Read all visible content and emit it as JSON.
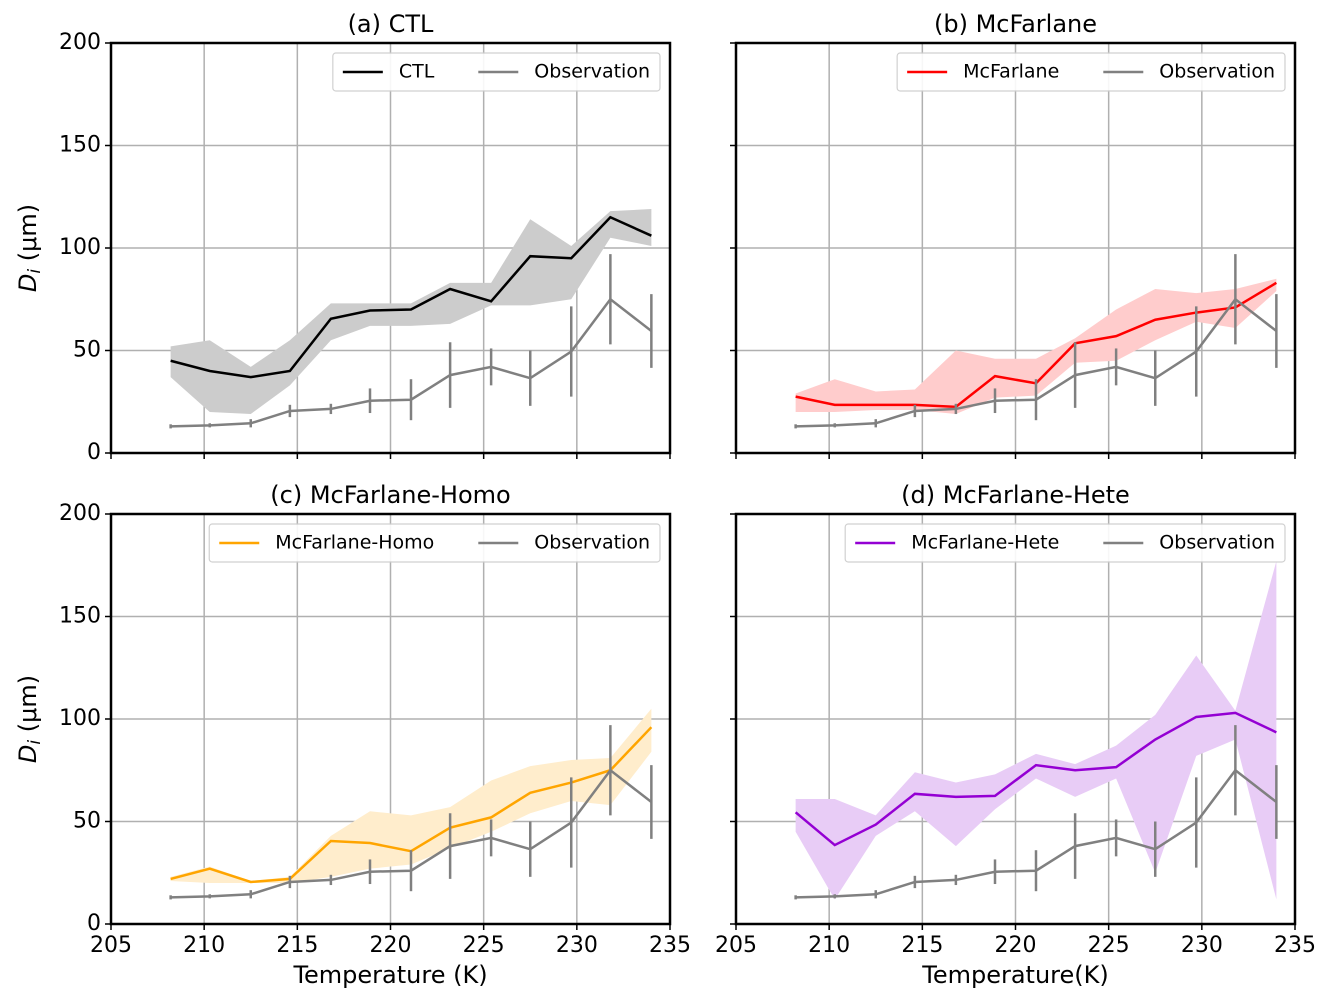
{
  "chart_data": [
    {
      "type": "line",
      "title": "(a) CTL",
      "x": [
        208.2,
        210.3,
        212.5,
        214.6,
        216.8,
        218.9,
        221.1,
        223.2,
        225.4,
        227.5,
        229.7,
        231.8,
        234.0
      ],
      "xlim": [
        205,
        235
      ],
      "xticks": [
        205,
        210,
        215,
        220,
        225,
        230,
        235
      ],
      "show_xticklabels": false,
      "ylim": [
        0,
        200
      ],
      "yticks": [
        0,
        50,
        100,
        150,
        200
      ],
      "show_yticklabels": true,
      "ylabel": {
        "symbol": "D",
        "subscript": "i",
        "unit": " (μm)"
      },
      "grid": true,
      "legend": "upper right",
      "series": [
        {
          "name": "CTL",
          "color": "#000000",
          "band_color": "#cccccc",
          "values": [
            45,
            40,
            37,
            40,
            65.5,
            69.5,
            70,
            80,
            74,
            96,
            95,
            115,
            106
          ],
          "band_lower": [
            37,
            20,
            19,
            33,
            55,
            62,
            62,
            63,
            72,
            72,
            75,
            105,
            101
          ],
          "band_upper": [
            52,
            55,
            42,
            55,
            73,
            73,
            73,
            83,
            83,
            114,
            101,
            118,
            119
          ]
        },
        {
          "name": "Observation",
          "color": "#808080",
          "values": [
            13,
            13.5,
            14.5,
            20.5,
            21.5,
            25.5,
            26,
            38,
            42,
            36.5,
            49.5,
            75,
            59.5
          ],
          "errors": [
            1,
            1,
            2,
            3,
            2.5,
            6,
            10,
            16,
            9,
            13.5,
            22,
            22,
            18
          ]
        }
      ]
    },
    {
      "type": "line",
      "title": "(b) McFarlane",
      "x": [
        208.2,
        210.3,
        212.5,
        214.6,
        216.8,
        218.9,
        221.1,
        223.2,
        225.4,
        227.5,
        229.7,
        231.8,
        234.0
      ],
      "xlim": [
        205,
        235
      ],
      "xticks": [
        205,
        210,
        215,
        220,
        225,
        230,
        235
      ],
      "show_xticklabels": false,
      "ylim": [
        0,
        200
      ],
      "yticks": [
        0,
        50,
        100,
        150,
        200
      ],
      "show_yticklabels": false,
      "grid": true,
      "legend": "upper right",
      "series": [
        {
          "name": "McFarlane",
          "color": "#ff0000",
          "band_color": "#ffcccc",
          "values": [
            27.5,
            23.5,
            23.5,
            23.5,
            22.5,
            37.5,
            34,
            53.5,
            57,
            65,
            68.5,
            71,
            83
          ],
          "band_lower": [
            20,
            20,
            21,
            21,
            19,
            27,
            28,
            44,
            45,
            55,
            64,
            61,
            79
          ],
          "band_upper": [
            29,
            36,
            30,
            31,
            50,
            46,
            46,
            56,
            70,
            80,
            78,
            80,
            85
          ]
        },
        {
          "name": "Observation",
          "color": "#808080",
          "values": [
            13,
            13.5,
            14.5,
            20.5,
            21.5,
            25.5,
            26,
            38,
            42,
            36.5,
            49.5,
            75,
            59.5
          ],
          "errors": [
            1,
            1,
            2,
            3,
            2.5,
            6,
            10,
            16,
            9,
            13.5,
            22,
            22,
            18
          ]
        }
      ]
    },
    {
      "type": "line",
      "title": "(c) McFarlane-Homo",
      "x": [
        208.2,
        210.3,
        212.5,
        214.6,
        216.8,
        218.9,
        221.1,
        223.2,
        225.4,
        227.5,
        229.7,
        231.8,
        234.0
      ],
      "xlim": [
        205,
        235
      ],
      "xticks": [
        205,
        210,
        215,
        220,
        225,
        230,
        235
      ],
      "show_xticklabels": true,
      "xlabel": "Temperature (K)",
      "ylim": [
        0,
        200
      ],
      "yticks": [
        0,
        50,
        100,
        150,
        200
      ],
      "show_yticklabels": true,
      "ylabel": {
        "symbol": "D",
        "subscript": "i",
        "unit": " (μm)"
      },
      "grid": true,
      "legend": "upper right",
      "series": [
        {
          "name": "McFarlane-Homo",
          "color": "#ffa500",
          "band_color": "#ffedcc",
          "values": [
            22,
            27,
            20.5,
            22,
            40.5,
            39.5,
            35.5,
            47,
            52,
            64,
            69,
            75,
            96
          ],
          "band_lower": [
            21,
            20,
            20,
            20,
            23,
            27,
            29,
            37,
            45,
            54,
            60,
            58,
            84
          ],
          "band_upper": [
            23,
            28,
            21,
            23,
            43,
            55,
            53,
            57,
            70,
            77,
            80,
            81,
            105
          ]
        },
        {
          "name": "Observation",
          "color": "#808080",
          "values": [
            13,
            13.5,
            14.5,
            20.5,
            21.5,
            25.5,
            26,
            38,
            42,
            36.5,
            49.5,
            75,
            59.5
          ],
          "errors": [
            1,
            1,
            2,
            3,
            2.5,
            6,
            10,
            16,
            9,
            13.5,
            22,
            22,
            18
          ]
        }
      ]
    },
    {
      "type": "line",
      "title": "(d) McFarlane-Hete",
      "x": [
        208.2,
        210.3,
        212.5,
        214.6,
        216.8,
        218.9,
        221.1,
        223.2,
        225.4,
        227.5,
        229.7,
        231.8,
        234.0
      ],
      "xlim": [
        205,
        235
      ],
      "xticks": [
        205,
        210,
        215,
        220,
        225,
        230,
        235
      ],
      "show_xticklabels": true,
      "xlabel": "Temperature(K)",
      "ylim": [
        0,
        200
      ],
      "yticks": [
        0,
        50,
        100,
        150,
        200
      ],
      "show_yticklabels": false,
      "grid": true,
      "legend": "upper right",
      "series": [
        {
          "name": "McFarlane-Hete",
          "color": "#9400d3",
          "band_color": "#e8ccf6",
          "values": [
            54.5,
            38.5,
            48.5,
            63.5,
            62,
            62.5,
            77.5,
            75,
            76.5,
            90,
            101,
            103,
            93.5
          ],
          "band_lower": [
            45,
            12,
            43,
            55,
            38,
            56,
            71,
            62,
            71,
            25,
            82,
            90,
            12
          ],
          "band_upper": [
            61,
            61,
            53,
            74,
            69,
            73,
            83,
            78,
            87,
            102,
            131,
            104,
            177
          ]
        },
        {
          "name": "Observation",
          "color": "#808080",
          "values": [
            13,
            13.5,
            14.5,
            20.5,
            21.5,
            25.5,
            26,
            38,
            42,
            36.5,
            49.5,
            75,
            59.5
          ],
          "errors": [
            1,
            1,
            2,
            3,
            2.5,
            6,
            10,
            16,
            9,
            13.5,
            22,
            22,
            18
          ]
        }
      ]
    }
  ]
}
